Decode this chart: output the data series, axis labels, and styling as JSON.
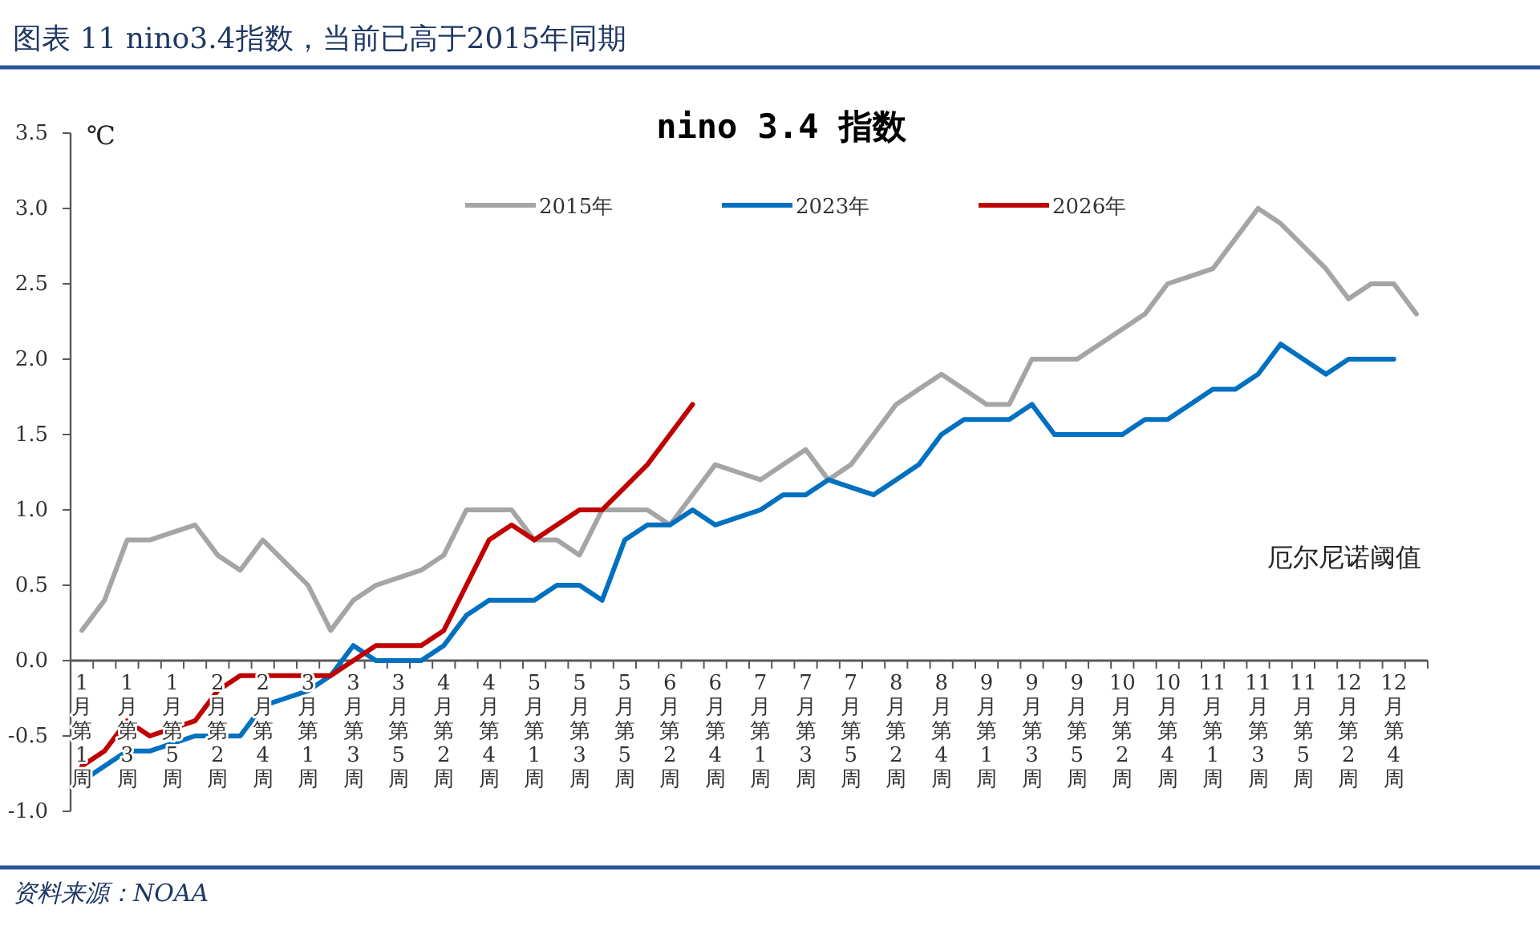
{
  "chart_data": {
    "type": "line",
    "title": "图表 11 nino3.4指数，当前已高于2015年同期",
    "subtitle": "nino 3.4 指数",
    "ylabel": "℃",
    "categories": [
      "1月第1周",
      null,
      "1月第3周",
      null,
      "1月第5周",
      null,
      "2月第2周",
      null,
      "2月第4周",
      null,
      "3月第1周",
      null,
      "3月第3周",
      null,
      "3月第5周",
      null,
      "4月第2周",
      null,
      "4月第4周",
      null,
      "5月第1周",
      null,
      "5月第3周",
      null,
      "5月第5周",
      null,
      "6月第2周",
      null,
      "6月第4周",
      null,
      "7月第1周",
      null,
      "7月第3周",
      null,
      "7月第5周",
      null,
      "8月第2周",
      null,
      "8月第4周",
      null,
      "9月第1周",
      null,
      "9月第3周",
      null,
      "9月第5周",
      null,
      "10月第2周",
      null,
      "10月第4周",
      null,
      "11月第1周",
      null,
      "11月第3周",
      null,
      "11月第5周",
      null,
      "12月第2周",
      null,
      "12月第4周",
      null
    ],
    "series": [
      {
        "name": "2015年",
        "color": "#a5a5a5",
        "values": [
          0.2,
          0.4,
          0.8,
          0.8,
          0.85,
          0.9,
          0.7,
          0.6,
          0.8,
          0.65,
          0.5,
          0.2,
          0.4,
          0.5,
          0.55,
          0.6,
          0.7,
          1.0,
          1.0,
          1.0,
          0.8,
          0.8,
          0.7,
          1.0,
          1.0,
          1.0,
          0.9,
          1.1,
          1.3,
          1.25,
          1.2,
          1.3,
          1.4,
          1.2,
          1.3,
          1.5,
          1.7,
          1.8,
          1.9,
          1.8,
          1.7,
          1.7,
          2.0,
          2.0,
          2.0,
          2.1,
          2.2,
          2.3,
          2.5,
          2.55,
          2.6,
          2.8,
          3.0,
          2.9,
          2.75,
          2.6,
          2.4,
          2.5,
          2.5,
          2.3
        ]
      },
      {
        "name": "2023年",
        "color": "#0070c0",
        "values": [
          -0.8,
          -0.7,
          -0.6,
          -0.6,
          -0.55,
          -0.5,
          -0.5,
          -0.5,
          -0.3,
          -0.25,
          -0.2,
          -0.1,
          0.1,
          0.0,
          0.0,
          0.0,
          0.1,
          0.3,
          0.4,
          0.4,
          0.4,
          0.5,
          0.5,
          0.4,
          0.8,
          0.9,
          0.9,
          1.0,
          0.9,
          0.95,
          1.0,
          1.1,
          1.1,
          1.2,
          1.15,
          1.1,
          1.2,
          1.3,
          1.5,
          1.6,
          1.6,
          1.6,
          1.7,
          1.5,
          1.5,
          1.5,
          1.5,
          1.6,
          1.6,
          1.7,
          1.8,
          1.8,
          1.9,
          2.1,
          2.0,
          1.9,
          2.0,
          2.0,
          2.0,
          null
        ]
      },
      {
        "name": "2026年",
        "color": "#c00000",
        "values": [
          -0.7,
          -0.6,
          -0.4,
          -0.5,
          -0.45,
          -0.4,
          -0.2,
          -0.1,
          -0.1,
          -0.1,
          -0.1,
          -0.1,
          0.0,
          0.1,
          0.1,
          0.1,
          0.2,
          0.5,
          0.8,
          0.9,
          0.8,
          0.9,
          1.0,
          1.0,
          1.15,
          1.3,
          1.5,
          1.7,
          null,
          null,
          null,
          null,
          null,
          null,
          null,
          null,
          null,
          null,
          null,
          null,
          null,
          null,
          null,
          null,
          null,
          null,
          null,
          null,
          null,
          null,
          null,
          null,
          null,
          null,
          null,
          null,
          null,
          null,
          null,
          null
        ]
      }
    ],
    "ylim": [
      -1.0,
      3.5
    ],
    "yticks": [
      {
        "value": -1.0,
        "label": "-1.0"
      },
      {
        "value": -0.5,
        "label": "-0.5"
      },
      {
        "value": 0.0,
        "label": "0.0"
      },
      {
        "value": 0.5,
        "label": "0.5"
      },
      {
        "value": 1.0,
        "label": "1.0"
      },
      {
        "value": 1.5,
        "label": "1.5"
      },
      {
        "value": 2.0,
        "label": "2.0"
      },
      {
        "value": 2.5,
        "label": "2.5"
      },
      {
        "value": 3.0,
        "label": "3.0"
      },
      {
        "value": 3.5,
        "label": "3.5"
      }
    ],
    "legend": "top",
    "marker": "none",
    "line_style": "solid",
    "annotations": [
      "厄尔尼诺阈值",
      "资料来源：NOAA"
    ]
  }
}
